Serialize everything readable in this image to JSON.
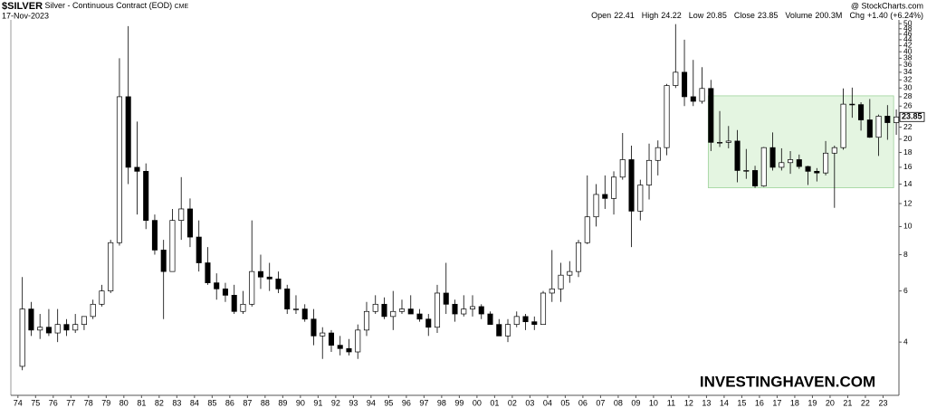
{
  "chart_data": {
    "type": "candlestick",
    "title": "$SILVER",
    "subtitle": "Silver - Continuous Contract (EOD)",
    "exchange": "CME",
    "date": "17-Nov-2023",
    "source": "@ StockCharts.com",
    "quote": [
      {
        "label": "Open",
        "value": 22.41
      },
      {
        "label": "High",
        "value": 24.22
      },
      {
        "label": "Low",
        "value": 20.85
      },
      {
        "label": "Close",
        "value": 23.85
      },
      {
        "label": "Volume",
        "value": "200.3M"
      },
      {
        "label": "Chg",
        "value": "+1.40 (+6.24%)"
      }
    ],
    "watermark": "INVESTINGHAVEN.COM",
    "log_scale": true,
    "up_color": "#ffffff",
    "down_color": "#000000",
    "highlight": {
      "x": [
        2013.1,
        2023.6
      ],
      "y": [
        13.6,
        28.2
      ],
      "color": "#e4f5e1"
    },
    "xlim": [
      1973.6,
      2023.9
    ],
    "ylim": [
      2.66,
      50.4
    ],
    "xticks": [
      {
        "value": 1974,
        "label": "74"
      },
      {
        "value": 1975,
        "label": "75"
      },
      {
        "value": 1976,
        "label": "76"
      },
      {
        "value": 1977,
        "label": "77"
      },
      {
        "value": 1978,
        "label": "78"
      },
      {
        "value": 1979,
        "label": "79"
      },
      {
        "value": 1980,
        "label": "80"
      },
      {
        "value": 1981,
        "label": "81"
      },
      {
        "value": 1982,
        "label": "82"
      },
      {
        "value": 1983,
        "label": "83"
      },
      {
        "value": 1984,
        "label": "84"
      },
      {
        "value": 1985,
        "label": "85"
      },
      {
        "value": 1986,
        "label": "86"
      },
      {
        "value": 1987,
        "label": "87"
      },
      {
        "value": 1988,
        "label": "88"
      },
      {
        "value": 1989,
        "label": "89"
      },
      {
        "value": 1990,
        "label": "90"
      },
      {
        "value": 1991,
        "label": "91"
      },
      {
        "value": 1992,
        "label": "92"
      },
      {
        "value": 1993,
        "label": "93"
      },
      {
        "value": 1994,
        "label": "94"
      },
      {
        "value": 1995,
        "label": "95"
      },
      {
        "value": 1996,
        "label": "96"
      },
      {
        "value": 1997,
        "label": "97"
      },
      {
        "value": 1998,
        "label": "98"
      },
      {
        "value": 1999,
        "label": "99"
      },
      {
        "value": 2000,
        "label": "00"
      },
      {
        "value": 2001,
        "label": "01"
      },
      {
        "value": 2002,
        "label": "02"
      },
      {
        "value": 2003,
        "label": "03"
      },
      {
        "value": 2004,
        "label": "04"
      },
      {
        "value": 2005,
        "label": "05"
      },
      {
        "value": 2006,
        "label": "06"
      },
      {
        "value": 2007,
        "label": "07"
      },
      {
        "value": 2008,
        "label": "08"
      },
      {
        "value": 2009,
        "label": "09"
      },
      {
        "value": 2010,
        "label": "10"
      },
      {
        "value": 2011,
        "label": "11"
      },
      {
        "value": 2012,
        "label": "12"
      },
      {
        "value": 2013,
        "label": "13"
      },
      {
        "value": 2014,
        "label": "14"
      },
      {
        "value": 2015,
        "label": "15"
      },
      {
        "value": 2016,
        "label": "16"
      },
      {
        "value": 2017,
        "label": "17"
      },
      {
        "value": 2018,
        "label": "18"
      },
      {
        "value": 2019,
        "label": "19"
      },
      {
        "value": 2020,
        "label": "20"
      },
      {
        "value": 2021,
        "label": "21"
      },
      {
        "value": 2022,
        "label": "22"
      },
      {
        "value": 2023,
        "label": "23"
      }
    ],
    "yticks": [
      4,
      6,
      8,
      10,
      12,
      14,
      16,
      18,
      20,
      22,
      26,
      28,
      30,
      32,
      34,
      36,
      38,
      40,
      42,
      44,
      46,
      48,
      50
    ],
    "x": [
      1974.25,
      1974.75,
      1975.25,
      1975.75,
      1976.25,
      1976.75,
      1977.25,
      1977.75,
      1978.25,
      1978.75,
      1979.25,
      1979.75,
      1980.25,
      1980.75,
      1981.25,
      1981.75,
      1982.25,
      1982.75,
      1983.25,
      1983.75,
      1984.25,
      1984.75,
      1985.25,
      1985.75,
      1986.25,
      1986.75,
      1987.25,
      1987.75,
      1988.25,
      1988.75,
      1989.25,
      1989.75,
      1990.25,
      1990.75,
      1991.25,
      1991.75,
      1992.25,
      1992.75,
      1993.25,
      1993.75,
      1994.25,
      1994.75,
      1995.25,
      1995.75,
      1996.25,
      1996.75,
      1997.25,
      1997.75,
      1998.25,
      1998.75,
      1999.25,
      1999.75,
      2000.25,
      2000.75,
      2001.25,
      2001.75,
      2002.25,
      2002.75,
      2003.25,
      2003.75,
      2004.25,
      2004.75,
      2005.25,
      2005.75,
      2006.25,
      2006.75,
      2007.25,
      2007.75,
      2008.25,
      2008.75,
      2009.25,
      2009.75,
      2010.25,
      2010.75,
      2011.25,
      2011.75,
      2012.25,
      2012.75,
      2013.25,
      2013.75,
      2014.25,
      2014.75,
      2015.25,
      2015.75,
      2016.25,
      2016.75,
      2017.25,
      2017.75,
      2018.25,
      2018.75,
      2019.25,
      2019.75,
      2020.25,
      2020.75,
      2021.25,
      2021.75,
      2022.25,
      2022.75,
      2023.25,
      2023.75
    ],
    "open": [
      3.3,
      5.2,
      4.4,
      4.5,
      4.3,
      4.6,
      4.4,
      4.6,
      4.9,
      5.4,
      6.0,
      8.8,
      28,
      16,
      15.5,
      10.5,
      8.3,
      7.0,
      10.5,
      11.5,
      9.2,
      7.5,
      6.4,
      6.1,
      5.8,
      5.1,
      5.4,
      7.0,
      6.7,
      6.6,
      6.1,
      5.2,
      5.2,
      4.8,
      4.2,
      4.3,
      3.9,
      3.8,
      3.7,
      4.4,
      5.1,
      5.4,
      4.9,
      5.1,
      5.2,
      5.0,
      4.8,
      4.5,
      5.9,
      5.4,
      5.0,
      5.2,
      5.3,
      5.0,
      4.6,
      4.2,
      4.6,
      4.9,
      4.7,
      4.6,
      5.9,
      6.1,
      6.8,
      7.0,
      8.8,
      10.8,
      12.9,
      12.5,
      14.8,
      17,
      11.3,
      13.9,
      16.9,
      18.7,
      30.6,
      34,
      28,
      27,
      29.9,
      19.5,
      19.5,
      19.7,
      15.6,
      15.6,
      13.8,
      18.7,
      16,
      16.6,
      17,
      16.1,
      15.5,
      15.3,
      17.9,
      18.7,
      26.4,
      26.3,
      23.3,
      20.3,
      24,
      22.8
    ],
    "high": [
      6.7,
      5.5,
      5.0,
      5.2,
      5.2,
      4.8,
      5.0,
      4.9,
      5.6,
      6.3,
      9.0,
      38,
      49,
      23,
      16.5,
      11,
      9,
      11.5,
      14.8,
      12.5,
      10.5,
      8.5,
      6.9,
      6.4,
      6.3,
      6.0,
      10.5,
      8,
      7.5,
      7.0,
      6.3,
      5.8,
      5.4,
      5.2,
      4.5,
      4.4,
      4.2,
      4.1,
      4.6,
      5.5,
      5.8,
      5.7,
      6.0,
      5.6,
      5.8,
      5.2,
      5.0,
      6.3,
      7.5,
      5.6,
      5.8,
      5.8,
      5.4,
      5.1,
      4.8,
      4.8,
      5.1,
      5.0,
      4.9,
      6.0,
      8.3,
      7.5,
      7.6,
      9.0,
      15,
      14,
      15,
      15.5,
      21,
      19,
      14.5,
      19.3,
      19.8,
      31,
      49.8,
      44,
      37.5,
      35.4,
      32,
      25,
      22.2,
      21.5,
      18.5,
      16.2,
      18.8,
      21.1,
      18.6,
      18.2,
      17.7,
      16.2,
      15.9,
      19.7,
      19,
      29.9,
      30.1,
      26.8,
      27.5,
      24.3,
      26.2,
      25.3
    ],
    "low": [
      3.2,
      4.2,
      4.1,
      4.2,
      4.0,
      4.2,
      4.3,
      4.4,
      4.8,
      5.3,
      5.9,
      8.6,
      14,
      11,
      9.8,
      8.0,
      4.8,
      7,
      9,
      8.5,
      7,
      6.3,
      5.6,
      5.5,
      5,
      5,
      5.3,
      6.1,
      6,
      5.9,
      5.0,
      5.0,
      4.7,
      3.9,
      3.5,
      3.7,
      3.6,
      3.6,
      3.5,
      4.2,
      5.0,
      4.8,
      4.4,
      5.0,
      5.0,
      4.7,
      4.2,
      4.3,
      5.0,
      4.7,
      4.9,
      4.9,
      4.8,
      4.6,
      4.2,
      4.0,
      4.5,
      4.4,
      4.4,
      4.6,
      5.5,
      5.5,
      6.4,
      6.7,
      8.7,
      10,
      11.5,
      11,
      14.5,
      8.5,
      10.5,
      12.4,
      15,
      17.6,
      30,
      26,
      26,
      26.5,
      18.2,
      18.8,
      18.6,
      14.2,
      14.6,
      13.6,
      13.7,
      15.6,
      15.6,
      15.2,
      15.8,
      13.9,
      14.3,
      15,
      11.6,
      18.4,
      23.7,
      21.4,
      20.2,
      17.5,
      19.9,
      20.7
    ],
    "close": [
      5.2,
      4.4,
      4.5,
      4.3,
      4.6,
      4.4,
      4.6,
      4.9,
      5.4,
      6.0,
      8.8,
      28,
      16,
      15.5,
      10.5,
      8.3,
      7.0,
      10.5,
      11.5,
      9.2,
      7.5,
      6.4,
      6.1,
      5.8,
      5.1,
      5.4,
      7.0,
      6.7,
      6.6,
      6.1,
      5.2,
      5.2,
      4.8,
      4.2,
      4.3,
      3.9,
      3.8,
      3.7,
      4.4,
      5.1,
      5.4,
      4.9,
      5.1,
      5.2,
      5.0,
      4.8,
      4.5,
      5.9,
      5.4,
      5.0,
      5.2,
      5.3,
      5.0,
      4.6,
      4.2,
      4.6,
      4.9,
      4.7,
      4.6,
      5.9,
      6.1,
      6.8,
      7.0,
      8.8,
      10.8,
      12.9,
      12.5,
      14.8,
      17,
      11.3,
      13.9,
      16.9,
      18.7,
      30.6,
      34,
      28,
      27,
      29.9,
      19.5,
      19.5,
      19.7,
      15.6,
      15.6,
      13.8,
      18.7,
      16,
      16.6,
      17,
      16.1,
      15.5,
      15.3,
      17.9,
      18.7,
      26.4,
      26.3,
      23.3,
      20.3,
      24,
      22.8,
      23.85
    ]
  }
}
